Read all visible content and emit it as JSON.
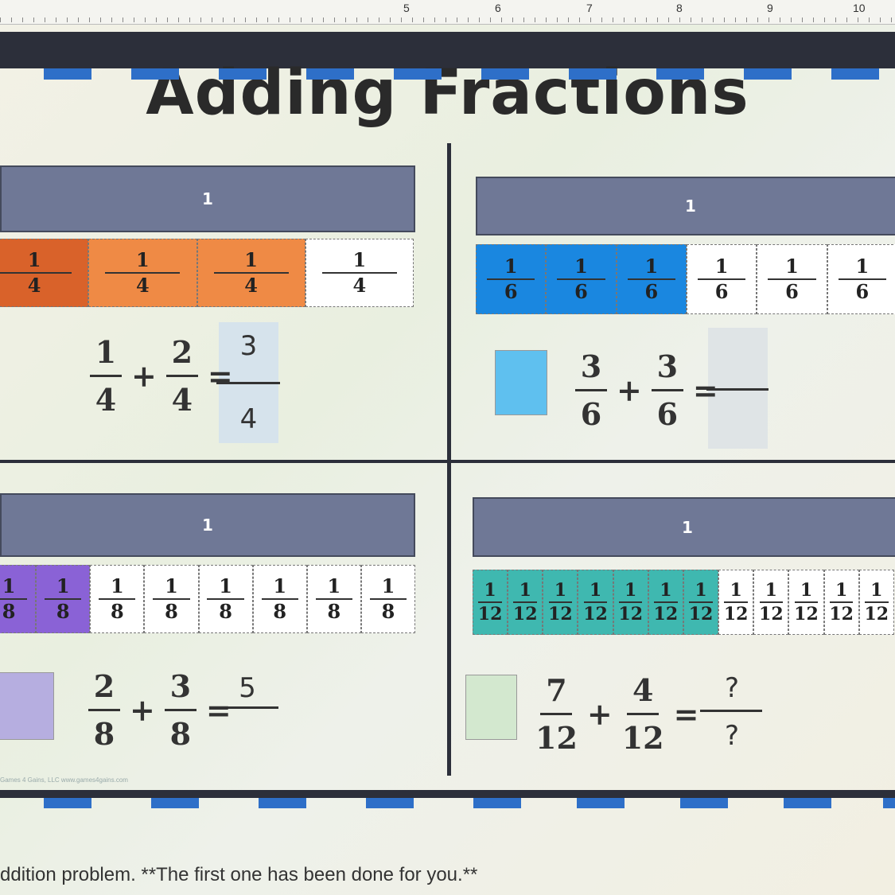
{
  "ruler": {
    "numbers": [
      "5",
      "6",
      "7",
      "8",
      "9",
      "10"
    ]
  },
  "title": "Adding Fractions",
  "whole_label": "1",
  "quadrants": [
    {
      "id": "fourths",
      "denominator": "4",
      "shaded": 3,
      "colors": [
        "#d9622a",
        "#ef8a45",
        "#ef8a45"
      ],
      "addend1": {
        "num": "1",
        "den": "4"
      },
      "addend2": {
        "num": "2",
        "den": "4"
      },
      "answer": {
        "num": "3",
        "den": "4"
      },
      "answer_box_color": "#d6e3ec",
      "swatch_color": null
    },
    {
      "id": "sixths",
      "denominator": "6",
      "shaded": 3,
      "colors": [
        "#1a87e0",
        "#1a87e0",
        "#1a87e0"
      ],
      "addend1": {
        "num": "3",
        "den": "6"
      },
      "addend2": {
        "num": "3",
        "den": "6"
      },
      "answer": {
        "num": "",
        "den": ""
      },
      "answer_box_color": "#dfe4e6",
      "swatch_color": "#5fc0ef"
    },
    {
      "id": "eighths",
      "denominator": "8",
      "shaded": 2,
      "colors": [
        "#8a62d6",
        "#8a62d6"
      ],
      "addend1": {
        "num": "2",
        "den": "8"
      },
      "addend2": {
        "num": "3",
        "den": "8"
      },
      "answer": {
        "num": "5",
        "den": ""
      },
      "answer_box_color": null,
      "swatch_color": "#b6aee0"
    },
    {
      "id": "twelfths",
      "denominator": "12",
      "shaded": 7,
      "colors": [
        "#3fb8b0",
        "#3fb8b0",
        "#3fb8b0",
        "#3fb8b0",
        "#3fb8b0",
        "#3fb8b0",
        "#3fb8b0"
      ],
      "addend1": {
        "num": "7",
        "den": "12"
      },
      "addend2": {
        "num": "4",
        "den": "12"
      },
      "answer": {
        "num": "?",
        "den": "?"
      },
      "answer_box_color": null,
      "swatch_color": "#d3e8cf"
    }
  ],
  "operators": {
    "plus": "+",
    "equals": "="
  },
  "credit": "Games 4 Gains, LLC www.games4gains.com",
  "instruction": "ddition problem.  **The first one has been done for you.**"
}
